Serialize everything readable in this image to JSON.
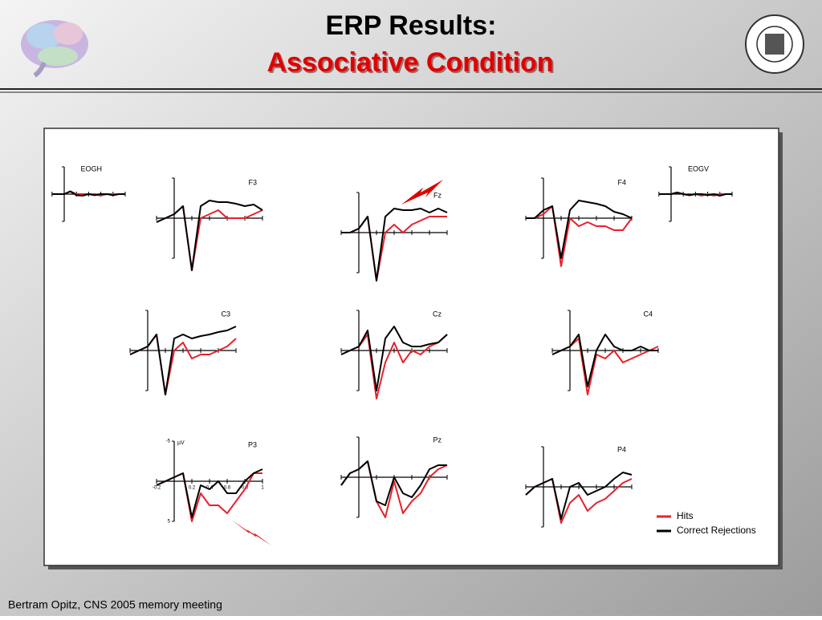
{
  "title": "ERP Results:",
  "subtitle": "Associative Condition",
  "footer": "Bertram Opitz, CNS 2005 memory meeting",
  "chart_data": {
    "type": "line",
    "x": [
      -0.2,
      -0.1,
      0,
      0.1,
      0.2,
      0.3,
      0.4,
      0.5,
      0.6,
      0.7,
      0.8,
      0.9,
      1.0
    ],
    "xlim": [
      -0.2,
      1.0
    ],
    "ylim": [
      5,
      -5
    ],
    "xticks": [
      -0.2,
      0.2,
      0.4,
      0.6,
      0.8,
      1
    ],
    "yticks": [
      -5,
      5
    ],
    "y_unit": "µV",
    "series": [
      {
        "name": "Hits",
        "color": "#e8202a"
      },
      {
        "name": "Correct Rejections",
        "color": "#000000"
      }
    ],
    "panels": [
      {
        "label": "EOGH",
        "values": [
          [
            0,
            0,
            0,
            -0.5,
            0,
            0,
            0,
            0,
            0.3,
            0,
            0,
            0,
            0
          ],
          [
            0,
            0,
            0,
            -0.5,
            0.2,
            0.3,
            0,
            0.2,
            0,
            0,
            0.2,
            0,
            0
          ]
        ]
      },
      {
        "label": "F3",
        "values": [
          [
            0.5,
            0,
            -0.5,
            -1.5,
            6.5,
            0,
            -0.5,
            -1,
            0,
            0,
            0,
            -0.5,
            -1
          ],
          [
            0.5,
            0,
            -0.5,
            -1.5,
            6.5,
            -1.5,
            -2.2,
            -2,
            -2,
            -1.8,
            -1.5,
            -1.7,
            -1
          ]
        ]
      },
      {
        "label": "Fz",
        "values": [
          [
            0,
            0,
            -0.5,
            -2,
            6,
            0,
            -1,
            0,
            -1,
            -1.5,
            -2,
            -2,
            -2
          ],
          [
            0,
            0,
            -0.5,
            -2,
            6,
            -2,
            -3,
            -2.8,
            -2.8,
            -3,
            -2.5,
            -3,
            -2.5
          ]
        ]
      },
      {
        "label": "F4",
        "values": [
          [
            0,
            0,
            -0.5,
            -1.5,
            6,
            0,
            1,
            0.5,
            1,
            1,
            1.5,
            1.5,
            0
          ],
          [
            0,
            0,
            -1,
            -1.5,
            5,
            -1,
            -2.2,
            -2,
            -1.8,
            -1.5,
            -0.8,
            -0.5,
            0
          ]
        ]
      },
      {
        "label": "EOGV",
        "values": [
          [
            0,
            0,
            0,
            -0.3,
            0,
            0.2,
            0,
            0.3,
            0,
            0.3,
            0,
            0,
            0
          ],
          [
            0,
            0,
            0,
            -0.3,
            0,
            0.2,
            0,
            0,
            0.2,
            0,
            0.3,
            0,
            0
          ]
        ]
      },
      {
        "label": "C3",
        "values": [
          [
            0.5,
            0,
            -0.5,
            -2,
            5.5,
            0,
            -1,
            1,
            0.5,
            0.5,
            0,
            -0.5,
            -1.5
          ],
          [
            0.5,
            0,
            -0.5,
            -2,
            5.5,
            -1.5,
            -2,
            -1.5,
            -1.8,
            -2,
            -2.3,
            -2.5,
            -3
          ]
        ]
      },
      {
        "label": "Cz",
        "values": [
          [
            0.5,
            0,
            -0.5,
            -2,
            6,
            1.5,
            -1,
            1.5,
            0,
            0.5,
            -0.5,
            -1,
            -2
          ],
          [
            0.5,
            0,
            -0.5,
            -2.5,
            5,
            -1.5,
            -3,
            -1,
            -0.5,
            -0.5,
            -0.8,
            -1,
            -2
          ]
        ]
      },
      {
        "label": "C4",
        "values": [
          [
            0.5,
            0,
            -0.5,
            -1.5,
            5.5,
            0.5,
            1,
            0,
            1.5,
            1,
            0.5,
            0,
            -0.5
          ],
          [
            0.5,
            0,
            -0.5,
            -2,
            4.5,
            0,
            -2,
            -0.5,
            0,
            0,
            -0.5,
            0,
            0
          ]
        ]
      },
      {
        "label": "P3",
        "values": [
          [
            0.5,
            0,
            -0.5,
            -1,
            5,
            1.5,
            3,
            3,
            4,
            2.5,
            1,
            -1,
            -1
          ],
          [
            0.5,
            0,
            -0.5,
            -1,
            4.5,
            0.5,
            1,
            0,
            1.5,
            1.5,
            0,
            -1,
            -1.5
          ]
        ]
      },
      {
        "label": "Pz",
        "values": [
          [
            1,
            -0.5,
            -1,
            -2,
            3,
            5,
            0.5,
            4.5,
            3,
            2,
            0,
            -1,
            -1.5
          ],
          [
            1,
            -0.5,
            -1,
            -2,
            3,
            3.5,
            0,
            2,
            2.5,
            1,
            -1,
            -1.5,
            -1.5
          ]
        ]
      },
      {
        "label": "P4",
        "values": [
          [
            1,
            0,
            -0.5,
            -1,
            4.5,
            2,
            1,
            3,
            2,
            1.5,
            0.5,
            -0.5,
            -1
          ],
          [
            1,
            0,
            -0.5,
            -1,
            4,
            0,
            -0.5,
            1,
            0.5,
            0,
            -1,
            -1.8,
            -1.5
          ]
        ]
      }
    ]
  }
}
